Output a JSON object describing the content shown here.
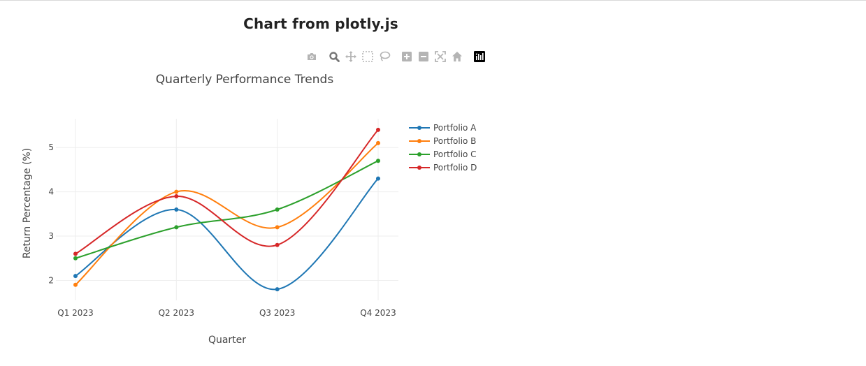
{
  "page": {
    "title": "Chart from plotly.js"
  },
  "modebar": {
    "buttons": [
      {
        "icon": "camera-icon",
        "tip": "Download plot as a png",
        "active": false
      },
      {
        "icon": "zoom-icon",
        "tip": "Zoom",
        "active": true
      },
      {
        "icon": "pan-icon",
        "tip": "Pan",
        "active": false
      },
      {
        "icon": "box-select-icon",
        "tip": "Box Select",
        "active": false
      },
      {
        "icon": "lasso-select-icon",
        "tip": "Lasso Select",
        "active": false
      },
      {
        "icon": "zoom-in-icon",
        "tip": "Zoom in",
        "active": false
      },
      {
        "icon": "zoom-out-icon",
        "tip": "Zoom out",
        "active": false
      },
      {
        "icon": "autoscale-icon",
        "tip": "Autoscale",
        "active": false
      },
      {
        "icon": "reset-axes-icon",
        "tip": "Reset axes",
        "active": false
      },
      {
        "icon": "plotly-logo-icon",
        "tip": "Produced with Plotly",
        "active": false
      }
    ]
  },
  "chart_data": {
    "type": "line",
    "title": "Quarterly Performance Trends",
    "xlabel": "Quarter",
    "ylabel": "Return Percentage (%)",
    "categories": [
      "Q1 2023",
      "Q2 2023",
      "Q3 2023",
      "Q4 2023"
    ],
    "ylim": [
      1.55,
      5.65
    ],
    "yticks": [
      2,
      3,
      4,
      5
    ],
    "grid": true,
    "legend_position": "top-right",
    "line_shape": "spline",
    "series": [
      {
        "name": "Portfolio A",
        "color": "#1f77b4",
        "values": [
          2.1,
          3.6,
          1.8,
          4.3
        ]
      },
      {
        "name": "Portfolio B",
        "color": "#ff7f0e",
        "values": [
          1.9,
          4.0,
          3.2,
          5.1
        ]
      },
      {
        "name": "Portfolio C",
        "color": "#2ca02c",
        "values": [
          2.5,
          3.2,
          3.6,
          4.7
        ]
      },
      {
        "name": "Portfolio D",
        "color": "#d62728",
        "values": [
          2.6,
          3.9,
          2.8,
          5.4
        ]
      }
    ]
  }
}
